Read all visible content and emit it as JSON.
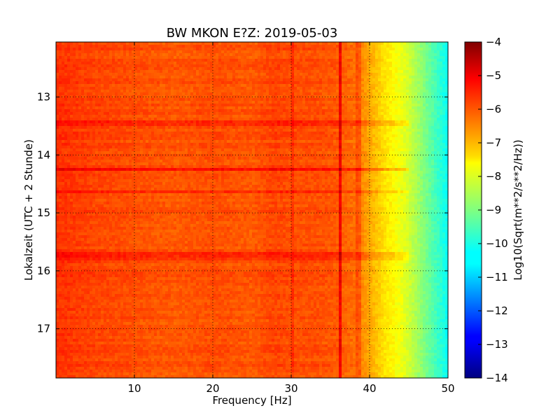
{
  "chart_data": {
    "type": "heatmap",
    "title": "BW MKON E?Z: 2019-05-03",
    "xlabel": "Frequency [Hz]",
    "ylabel": "Lokalzeit (UTC + 2 Stunde)",
    "xlim": [
      0,
      50
    ],
    "ylim": [
      17.85,
      12.05
    ],
    "y_inverted": true,
    "x_ticks": [
      10,
      20,
      30,
      40,
      50
    ],
    "x_tick_labels": [
      "10",
      "20",
      "30",
      "40",
      "50"
    ],
    "y_ticks": [
      13,
      14,
      15,
      16,
      17
    ],
    "y_tick_labels": [
      "13",
      "14",
      "15",
      "16",
      "17"
    ],
    "grid": true,
    "colormap": "jet",
    "colorbar": {
      "label": "Log10(Sqrt(m**2/s**2/Hz))",
      "range": [
        -14,
        -4
      ],
      "ticks": [
        -4,
        -5,
        -6,
        -7,
        -8,
        -9,
        -10,
        -11,
        -12,
        -13,
        -14
      ],
      "tick_labels": [
        "−4",
        "−5",
        "−6",
        "−7",
        "−8",
        "−9",
        "−10",
        "−11",
        "−12",
        "−13",
        "−14"
      ]
    },
    "frequency_profile": {
      "frequency_hz": [
        0,
        5,
        10,
        15,
        20,
        25,
        28,
        30,
        33,
        36,
        38,
        40,
        41,
        42,
        43,
        44,
        45,
        46,
        47,
        48,
        49,
        50
      ],
      "log10_amplitude": [
        -5.7,
        -5.9,
        -6.0,
        -6.1,
        -6.0,
        -6.1,
        -5.9,
        -6.0,
        -6.0,
        -6.1,
        -6.3,
        -6.9,
        -7.2,
        -7.5,
        -7.7,
        -7.9,
        -8.2,
        -8.6,
        -9.0,
        -9.4,
        -9.8,
        -10.2
      ]
    },
    "horizontal_bands": [
      {
        "time": 14.25,
        "delta": 0.75
      },
      {
        "time": 13.45,
        "delta": 0.45
      },
      {
        "time": 15.72,
        "delta": 0.45
      },
      {
        "time": 15.8,
        "delta": 0.35
      },
      {
        "time": 14.62,
        "delta": 0.35
      }
    ],
    "vertical_lines": [
      {
        "frequency_hz": 36.3,
        "delta": 1.0
      },
      {
        "frequency_hz": 38.6,
        "delta": 0.4
      },
      {
        "frequency_hz": 30.2,
        "delta": 0.3
      }
    ]
  }
}
